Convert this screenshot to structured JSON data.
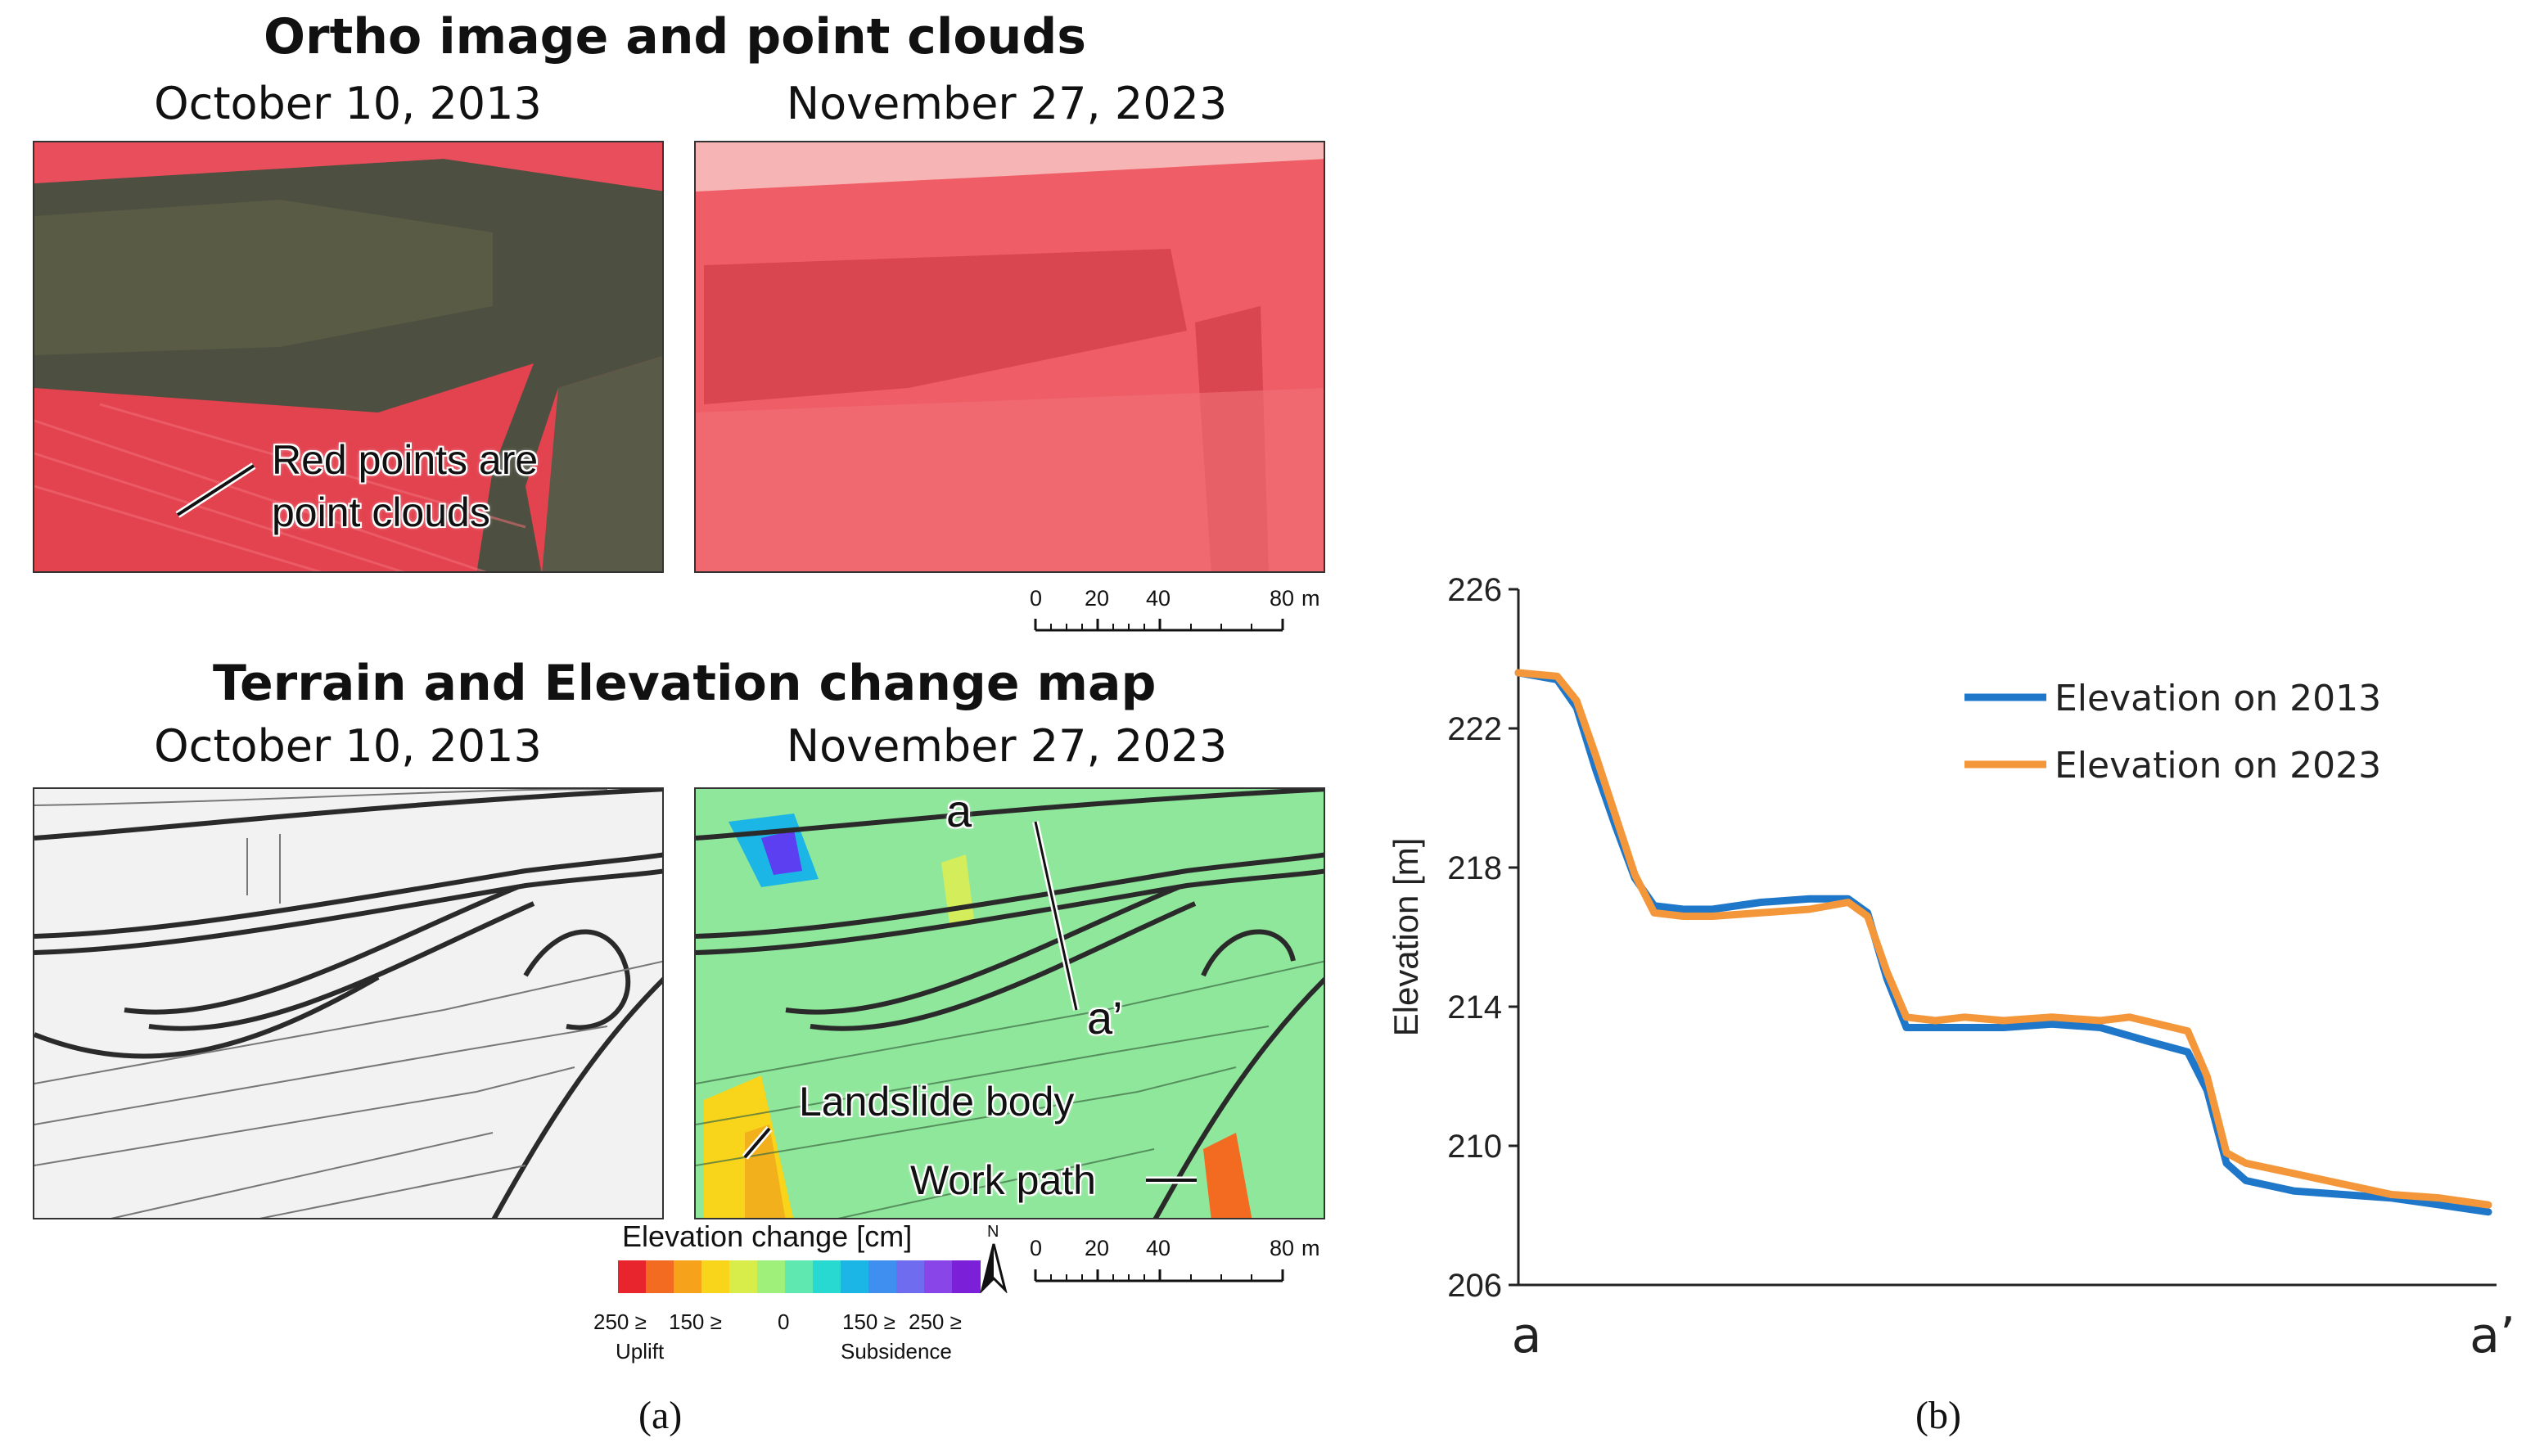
{
  "panel_a": {
    "top_title": "Ortho image and point clouds",
    "bottom_title": "Terrain and Elevation change map",
    "date_left": "October 10, 2013",
    "date_right": "November 27, 2023",
    "annotation_points_line1": "Red points are",
    "annotation_points_line2": "point clouds",
    "annotation_landslide": "Landslide body",
    "annotation_workpath": "Work path",
    "profile_a": "a",
    "profile_a_prime": "a’",
    "scale_ticks": [
      "0",
      "20",
      "40",
      "80"
    ],
    "scale_unit": "m",
    "north_label": "N",
    "legend_title": "Elevation change [cm]",
    "legend_tick_labels": [
      "250 ≥",
      "150 ≥",
      "0",
      "150 ≥",
      "250 ≥"
    ],
    "legend_uplift": "Uplift",
    "legend_subsidence": "Subsidence",
    "legend_colors": [
      "#e8242c",
      "#f26b21",
      "#f7a21b",
      "#f8d51a",
      "#d9ed4a",
      "#9ef07a",
      "#5fe8b0",
      "#27d9d0",
      "#1cb6e6",
      "#3f8ff0",
      "#6f6cf0",
      "#8a45e8",
      "#7b1fd8"
    ],
    "caption": "(a)"
  },
  "panel_b": {
    "caption": "(b)"
  },
  "chart_data": {
    "type": "line",
    "title": "",
    "xlabel": "",
    "ylabel": "Elevation [m]",
    "x_start_label": "a",
    "x_end_label": "a’",
    "xlim": [
      0,
      1
    ],
    "ylim": [
      206,
      226
    ],
    "yticks": [
      206,
      210,
      214,
      218,
      222,
      226
    ],
    "legend_position": "top-right",
    "series": [
      {
        "name": "Elevation on 2013",
        "color": "#1f77c9",
        "points": [
          [
            0.0,
            223.6
          ],
          [
            0.04,
            223.4
          ],
          [
            0.06,
            222.6
          ],
          [
            0.08,
            220.8
          ],
          [
            0.1,
            219.2
          ],
          [
            0.12,
            217.7
          ],
          [
            0.14,
            216.9
          ],
          [
            0.17,
            216.8
          ],
          [
            0.2,
            216.8
          ],
          [
            0.25,
            217.0
          ],
          [
            0.3,
            217.1
          ],
          [
            0.34,
            217.1
          ],
          [
            0.36,
            216.7
          ],
          [
            0.38,
            214.8
          ],
          [
            0.4,
            213.4
          ],
          [
            0.43,
            213.4
          ],
          [
            0.46,
            213.4
          ],
          [
            0.5,
            213.4
          ],
          [
            0.55,
            213.5
          ],
          [
            0.6,
            213.4
          ],
          [
            0.65,
            213.0
          ],
          [
            0.69,
            212.7
          ],
          [
            0.71,
            211.6
          ],
          [
            0.73,
            209.5
          ],
          [
            0.75,
            209.0
          ],
          [
            0.8,
            208.7
          ],
          [
            0.9,
            208.5
          ],
          [
            0.95,
            208.3
          ],
          [
            1.0,
            208.1
          ]
        ]
      },
      {
        "name": "Elevation on 2023",
        "color": "#f4963a",
        "points": [
          [
            0.0,
            223.6
          ],
          [
            0.04,
            223.5
          ],
          [
            0.06,
            222.8
          ],
          [
            0.08,
            221.2
          ],
          [
            0.1,
            219.5
          ],
          [
            0.12,
            217.8
          ],
          [
            0.14,
            216.7
          ],
          [
            0.17,
            216.6
          ],
          [
            0.2,
            216.6
          ],
          [
            0.25,
            216.7
          ],
          [
            0.3,
            216.8
          ],
          [
            0.34,
            217.0
          ],
          [
            0.36,
            216.6
          ],
          [
            0.38,
            215.0
          ],
          [
            0.4,
            213.7
          ],
          [
            0.43,
            213.6
          ],
          [
            0.46,
            213.7
          ],
          [
            0.5,
            213.6
          ],
          [
            0.55,
            213.7
          ],
          [
            0.6,
            213.6
          ],
          [
            0.63,
            213.7
          ],
          [
            0.69,
            213.3
          ],
          [
            0.71,
            212.0
          ],
          [
            0.73,
            209.8
          ],
          [
            0.75,
            209.5
          ],
          [
            0.8,
            209.2
          ],
          [
            0.9,
            208.6
          ],
          [
            0.95,
            208.5
          ],
          [
            1.0,
            208.3
          ]
        ]
      }
    ]
  }
}
